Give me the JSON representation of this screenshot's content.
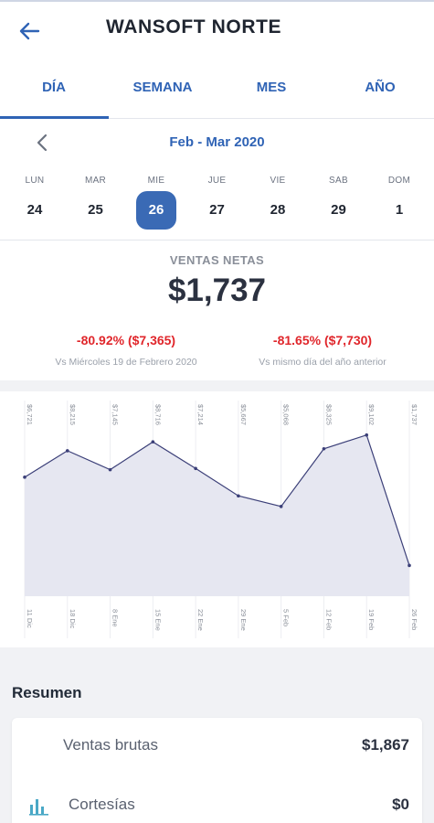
{
  "header": {
    "title": "WANSOFT NORTE",
    "back_icon": "arrow-left-icon"
  },
  "tabs": [
    {
      "label": "DÍA",
      "active": true
    },
    {
      "label": "SEMANA",
      "active": false
    },
    {
      "label": "MES",
      "active": false
    },
    {
      "label": "AÑO",
      "active": false
    }
  ],
  "calendar": {
    "title": "Feb - Mar 2020",
    "prev_icon": "chevron-left-icon",
    "days": [
      {
        "name": "LUN",
        "num": "24",
        "selected": false
      },
      {
        "name": "MAR",
        "num": "25",
        "selected": false
      },
      {
        "name": "MIE",
        "num": "26",
        "selected": true
      },
      {
        "name": "JUE",
        "num": "27",
        "selected": false
      },
      {
        "name": "VIE",
        "num": "28",
        "selected": false
      },
      {
        "name": "SAB",
        "num": "29",
        "selected": false
      },
      {
        "name": "DOM",
        "num": "1",
        "selected": false
      }
    ]
  },
  "summary": {
    "label": "VENTAS NETAS",
    "value": "$1,737",
    "compare_left": {
      "value": "-80.92%  ($7,365)",
      "label": "Vs Miércoles 19 de Febrero 2020"
    },
    "compare_right": {
      "value": "-81.65%  ($7,730)",
      "label": "Vs mismo día del año anterior"
    }
  },
  "chart_data": {
    "type": "area",
    "categories": [
      "11 Dic",
      "18 Dic",
      "8 Ene",
      "15 Ene",
      "22 Ene",
      "29 Ene",
      "5 Feb",
      "12 Feb",
      "19 Feb",
      "26 Feb"
    ],
    "value_labels": [
      "$6,721",
      "$8,215",
      "$7,145",
      "$8,716",
      "$7,214",
      "$5,667",
      "$5,068",
      "$8,325",
      "$9,102",
      "$1,737"
    ],
    "values": [
      6721,
      8215,
      7145,
      8716,
      7214,
      5667,
      5068,
      8325,
      9102,
      1737
    ],
    "ylim": [
      0,
      9500
    ],
    "colors": {
      "line": "#3b3f78",
      "fill": "#e6e7f1"
    },
    "grid": false
  },
  "resumen": {
    "title": "Resumen",
    "rows": [
      {
        "label": "Ventas brutas",
        "value": "$1,867",
        "icon": ""
      },
      {
        "label": "Cortesías",
        "value": "$0",
        "icon": "bar-chart-icon"
      }
    ]
  },
  "colors": {
    "accent": "#2f63b5",
    "negative": "#e0262b",
    "selected_day": "#3a6ab5"
  }
}
